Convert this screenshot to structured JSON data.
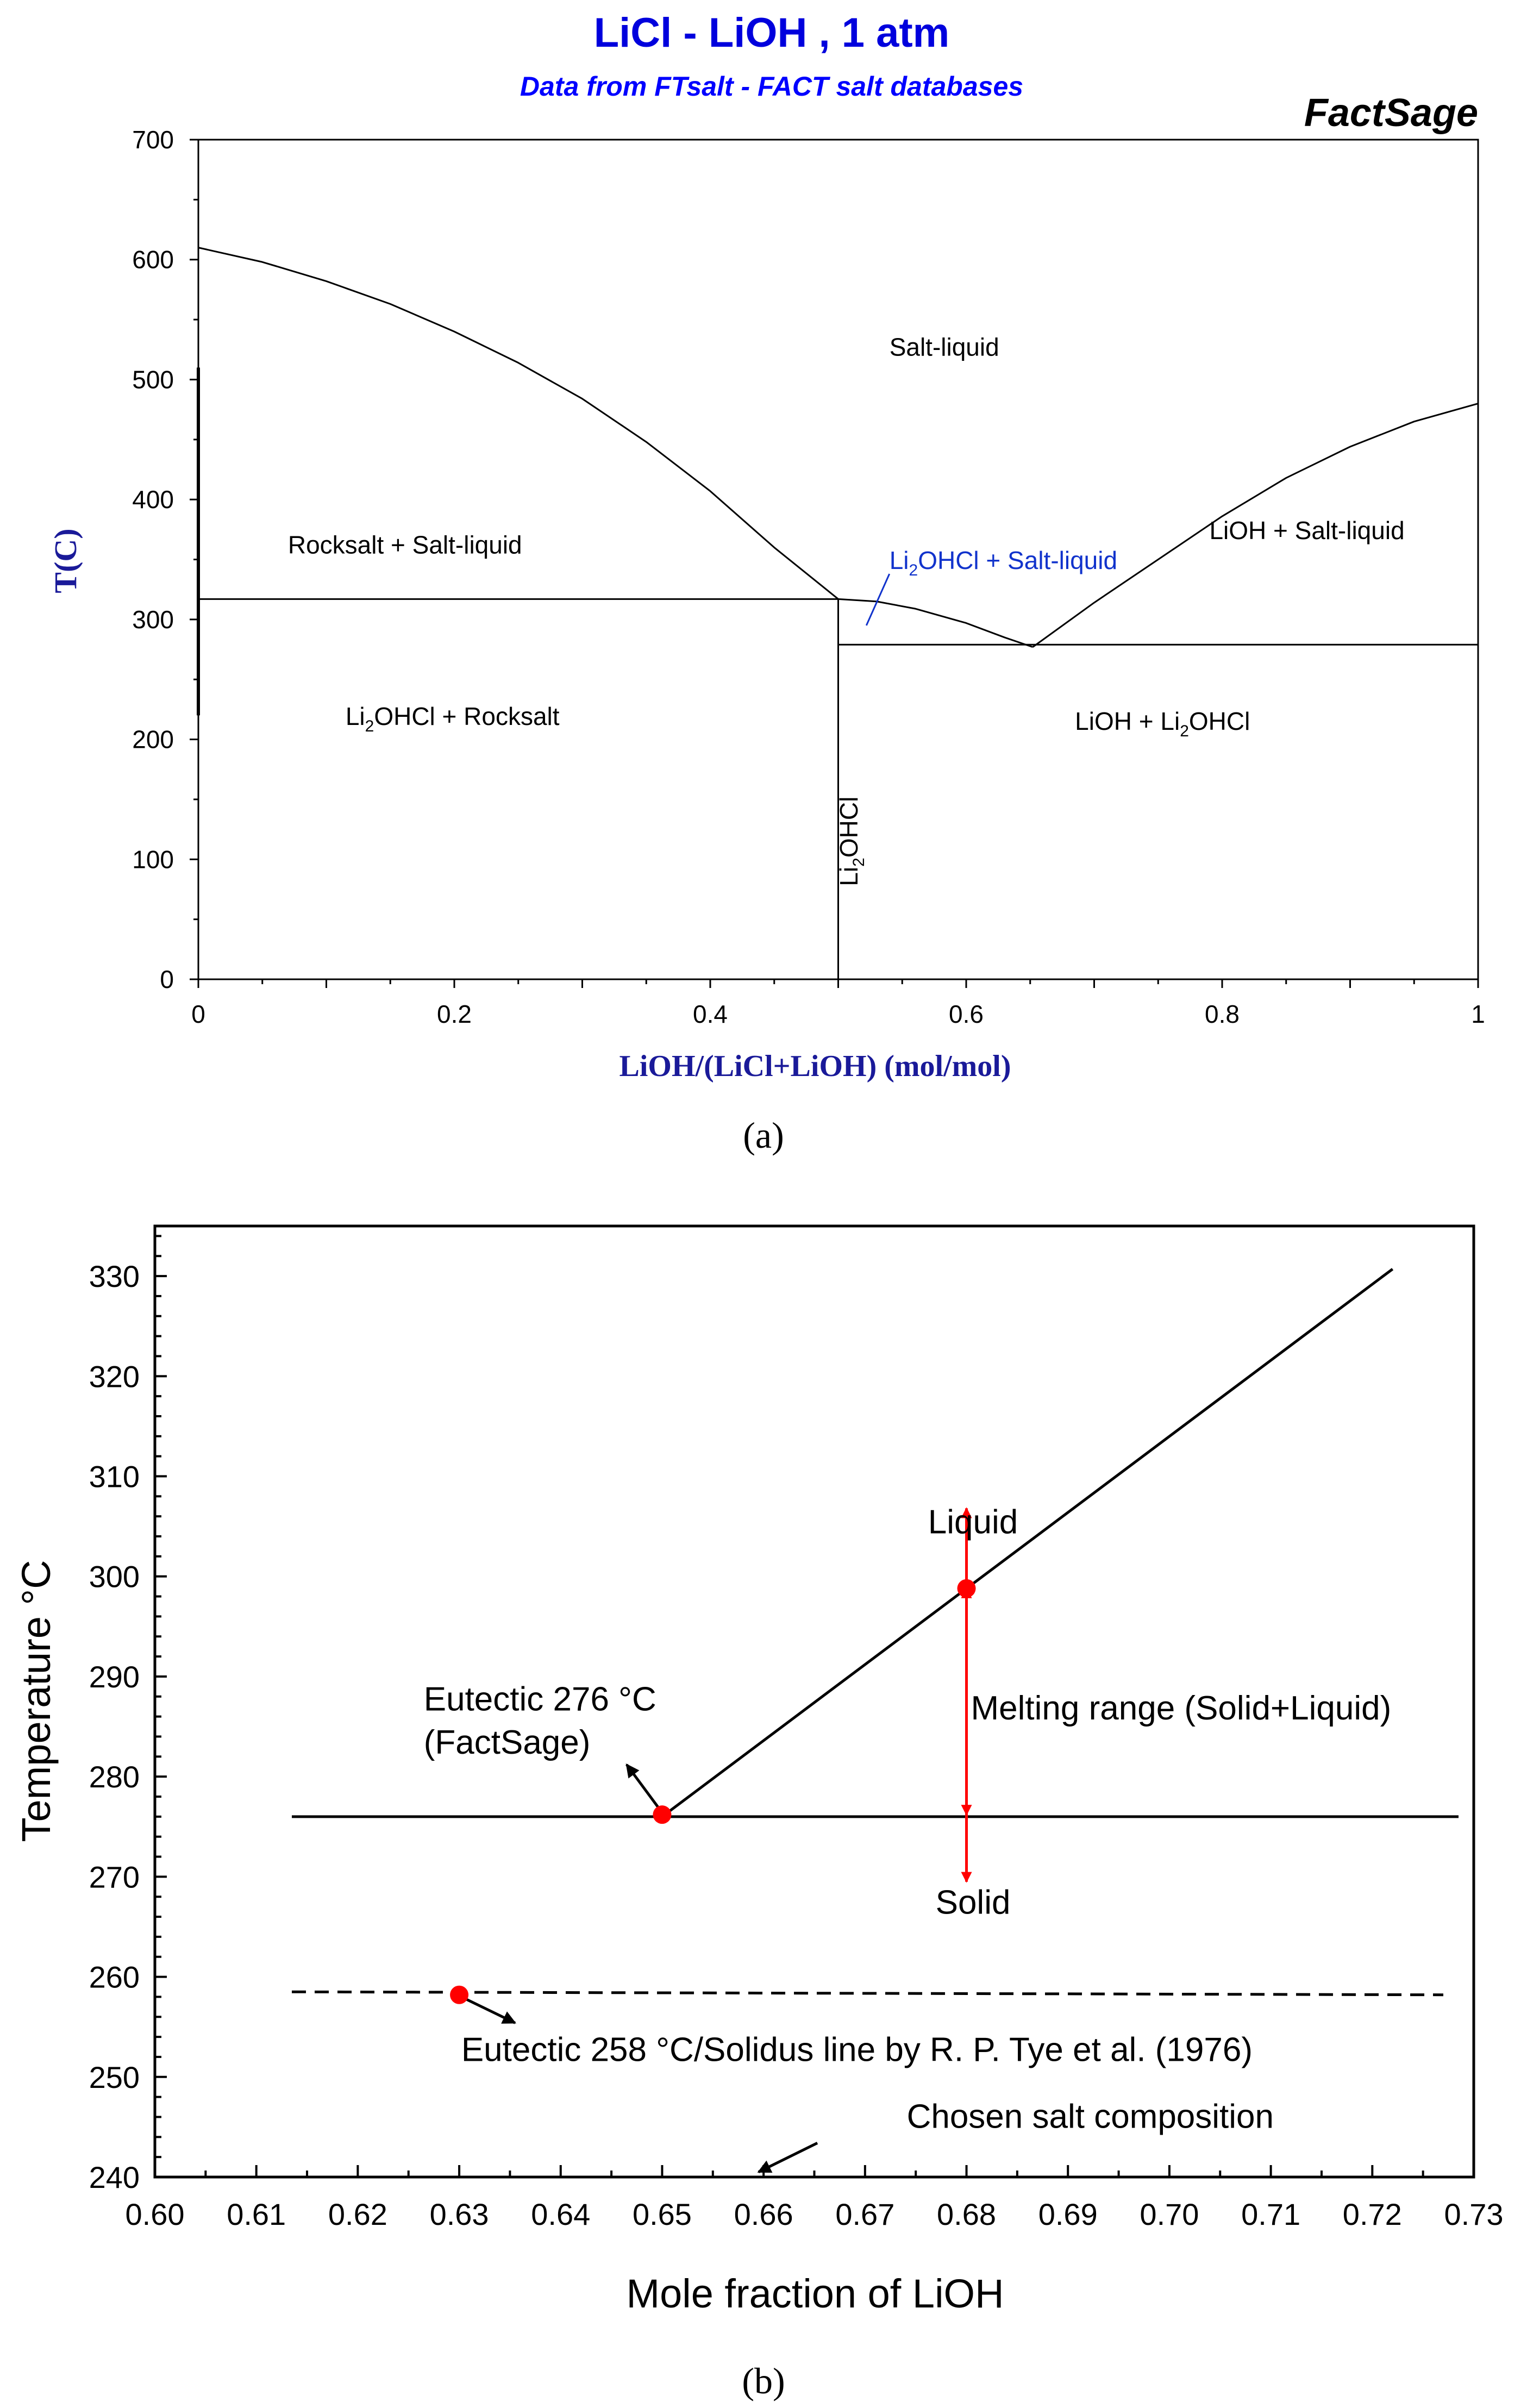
{
  "chart_data": [
    {
      "type": "line",
      "panel_label": "(a)",
      "title": "LiCl - LiOH , 1 atm",
      "subtitle": "Data from FTsalt - FACT salt databases",
      "watermark": "FactSage",
      "xlabel": "LiOH/(LiCl+LiOH) (mol/mol)",
      "ylabel": "T(C)",
      "xlim": [
        0,
        1
      ],
      "ylim": [
        0,
        700
      ],
      "x_ticks": [
        0,
        0.2,
        0.4,
        0.6,
        0.8,
        1
      ],
      "x_tick_labels": [
        "0",
        "0.2",
        "0.4",
        "0.6",
        "0.8",
        "1"
      ],
      "y_ticks": [
        0,
        100,
        200,
        300,
        400,
        500,
        600,
        700
      ],
      "y_tick_labels": [
        "0",
        "100",
        "200",
        "300",
        "400",
        "500",
        "600",
        "700"
      ],
      "series": [
        {
          "name": "liquidus-licl-side",
          "x": [
            0,
            0.05,
            0.1,
            0.15,
            0.2,
            0.25,
            0.3,
            0.35,
            0.4,
            0.45,
            0.5
          ],
          "y": [
            610,
            598,
            582,
            563,
            540,
            514,
            484,
            448,
            407,
            360,
            317
          ]
        },
        {
          "name": "liquidus-li2ohcl",
          "x": [
            0.5,
            0.53,
            0.56,
            0.6,
            0.63,
            0.652
          ],
          "y": [
            317,
            315,
            309,
            297,
            285,
            277
          ]
        },
        {
          "name": "liquidus-lioh-side",
          "x": [
            0.652,
            0.7,
            0.75,
            0.8,
            0.85,
            0.9,
            0.95,
            1
          ],
          "y": [
            277,
            314,
            350,
            386,
            418,
            444,
            465,
            480
          ]
        },
        {
          "name": "peritectic-line",
          "x": [
            0,
            0.5
          ],
          "y": [
            317,
            317
          ]
        },
        {
          "name": "eutectic-line",
          "x": [
            0.5,
            1
          ],
          "y": [
            279,
            279
          ]
        },
        {
          "name": "li2ohcl-compound-line",
          "x": [
            0.5,
            0.5
          ],
          "y": [
            0,
            317
          ]
        },
        {
          "name": "licl-edge",
          "x": [
            0,
            0
          ],
          "y": [
            220,
            510
          ]
        },
        {
          "name": "label-pointer",
          "x": [
            0.522,
            0.54
          ],
          "y": [
            295,
            338
          ]
        }
      ],
      "region_labels": [
        {
          "id": "salt-liquid",
          "text": "Salt-liquid",
          "x": 0.54,
          "y": 520
        },
        {
          "id": "rocksalt-salt-liquid",
          "text": "Rocksalt + Salt-liquid",
          "x": 0.07,
          "y": 355
        },
        {
          "id": "li2ohcl-salt-liquid",
          "text": "Li2OHCl + Salt-liquid",
          "x": 0.54,
          "y": 342
        },
        {
          "id": "lioh-salt-liquid",
          "text": "LiOH + Salt-liquid",
          "x": 0.79,
          "y": 367
        },
        {
          "id": "li2ohcl-rocksalt",
          "text": "Li2OHCl + Rocksalt",
          "x": 0.115,
          "y": 212
        },
        {
          "id": "lioh-li2ohcl",
          "text": "LiOH + Li2OHCl",
          "x": 0.685,
          "y": 208
        },
        {
          "id": "li2ohcl-vertical",
          "text": "Li2OHCl",
          "x": 0.515,
          "y": 115
        }
      ]
    },
    {
      "type": "line",
      "panel_label": "(b)",
      "title": "",
      "xlabel": "Mole fraction of LiOH",
      "ylabel": "Temperature °C",
      "xlim": [
        0.6,
        0.73
      ],
      "ylim": [
        240,
        335
      ],
      "x_ticks": [
        0.6,
        0.61,
        0.62,
        0.63,
        0.64,
        0.65,
        0.66,
        0.67,
        0.68,
        0.69,
        0.7,
        0.71,
        0.72,
        0.73
      ],
      "x_tick_labels": [
        "0.60",
        "0.61",
        "0.62",
        "0.63",
        "0.64",
        "0.65",
        "0.66",
        "0.67",
        "0.68",
        "0.69",
        "0.70",
        "0.71",
        "0.72",
        "0.73"
      ],
      "y_ticks": [
        240,
        250,
        260,
        270,
        280,
        290,
        300,
        310,
        320,
        330
      ],
      "y_tick_labels": [
        "240",
        "250",
        "260",
        "270",
        "280",
        "290",
        "300",
        "310",
        "320",
        "330"
      ],
      "series": [
        {
          "name": "solidus-factsage",
          "style": "solid",
          "x": [
            0.6135,
            0.7285
          ],
          "y": [
            276,
            276
          ]
        },
        {
          "name": "liquidus",
          "style": "solid",
          "x": [
            0.65,
            0.722
          ],
          "y": [
            276,
            330.7
          ]
        },
        {
          "name": "solidus-tye",
          "style": "dashed",
          "x": [
            0.6135,
            0.727
          ],
          "y": [
            258.5,
            258.2
          ]
        }
      ],
      "points": [
        {
          "name": "eutectic-factsage",
          "x": 0.65,
          "y": 276.2
        },
        {
          "name": "liquidus-at-chosen",
          "x": 0.68,
          "y": 298.8
        },
        {
          "name": "eutectic-tye",
          "x": 0.63,
          "y": 258.2
        }
      ],
      "annotations": {
        "liquid": "Liquid",
        "solid": "Solid",
        "melting_range": "Melting range (Solid+Liquid)",
        "eutectic_factsage_line1": "Eutectic 276 °C",
        "eutectic_factsage_line2": "(FactSage)",
        "eutectic_tye": "Eutectic 258 °C/Solidus line by R. P. Tye et al. (1976)",
        "chosen": "Chosen salt composition"
      }
    }
  ],
  "colors": {
    "title_blue": "#0000dd",
    "subtitle_blue": "#0000ff",
    "axis_label_navy": "#1a1a99",
    "pointer_blue": "#1133cc",
    "marker_red": "#ff0000",
    "line_black": "#000000"
  }
}
